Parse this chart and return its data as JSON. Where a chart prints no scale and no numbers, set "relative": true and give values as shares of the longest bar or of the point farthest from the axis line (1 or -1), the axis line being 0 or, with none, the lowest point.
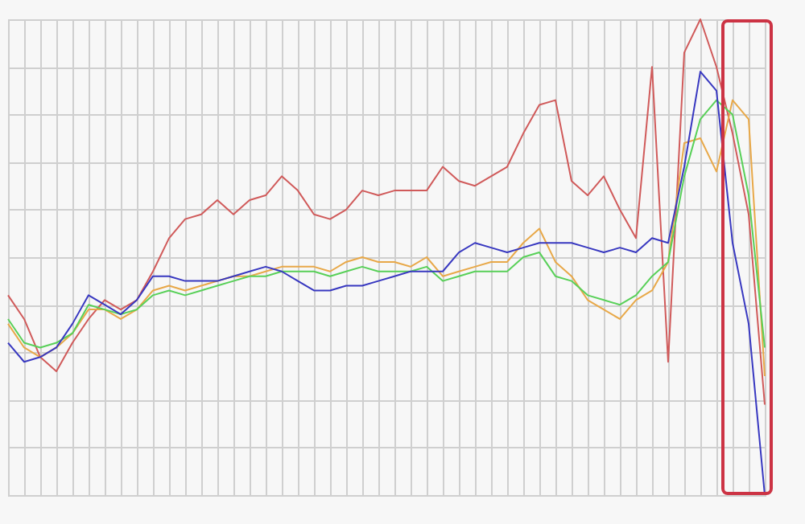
{
  "chart_data": {
    "type": "line",
    "relative": true,
    "grid": true,
    "categories": [
      null,
      null,
      null,
      null,
      null,
      null,
      null,
      null,
      null,
      null,
      null,
      null,
      null,
      null,
      null,
      null,
      null,
      null,
      null,
      null,
      null,
      null,
      null,
      null,
      null,
      null,
      null,
      null,
      null,
      null,
      null,
      null,
      null,
      null,
      null,
      null,
      null,
      null,
      null,
      null,
      null,
      null,
      null,
      null,
      null,
      null,
      null,
      null
    ],
    "series": [
      {
        "color": "#d05a5a",
        "values": [
          0.42,
          0.37,
          0.29,
          0.26,
          0.32,
          0.37,
          0.41,
          0.39,
          0.41,
          0.47,
          0.54,
          0.58,
          0.59,
          0.62,
          0.59,
          0.62,
          0.63,
          0.67,
          0.64,
          0.59,
          0.58,
          0.6,
          0.64,
          0.63,
          0.64,
          0.64,
          0.64,
          0.69,
          0.66,
          0.65,
          0.67,
          0.69,
          0.76,
          0.82,
          0.83,
          0.66,
          0.63,
          0.67,
          0.6,
          0.54,
          0.9,
          0.28,
          0.93,
          1,
          0.9,
          0.76,
          0.59,
          0.19
        ]
      },
      {
        "color": "#e8a848",
        "values": [
          0.36,
          0.31,
          0.29,
          0.31,
          0.34,
          0.39,
          0.39,
          0.37,
          0.39,
          0.43,
          0.44,
          0.43,
          0.44,
          0.45,
          0.46,
          0.46,
          0.47,
          0.48,
          0.48,
          0.48,
          0.47,
          0.49,
          0.5,
          0.49,
          0.49,
          0.48,
          0.5,
          0.46,
          0.47,
          0.48,
          0.49,
          0.49,
          0.53,
          0.56,
          0.49,
          0.46,
          0.41,
          0.39,
          0.37,
          0.41,
          0.43,
          0.49,
          0.74,
          0.75,
          0.68,
          0.83,
          0.79,
          0.25
        ]
      },
      {
        "color": "#58d058",
        "values": [
          0.37,
          0.32,
          0.31,
          0.32,
          0.34,
          0.4,
          0.39,
          0.38,
          0.39,
          0.42,
          0.43,
          0.42,
          0.43,
          0.44,
          0.45,
          0.46,
          0.46,
          0.47,
          0.47,
          0.47,
          0.46,
          0.47,
          0.48,
          0.47,
          0.47,
          0.47,
          0.48,
          0.45,
          0.46,
          0.47,
          0.47,
          0.47,
          0.5,
          0.51,
          0.46,
          0.45,
          0.42,
          0.41,
          0.4,
          0.42,
          0.46,
          0.49,
          0.67,
          0.79,
          0.83,
          0.8,
          0.63,
          0.31
        ]
      },
      {
        "color": "#3838c0",
        "values": [
          0.32,
          0.28,
          0.29,
          0.31,
          0.36,
          0.42,
          0.4,
          0.38,
          0.41,
          0.46,
          0.46,
          0.45,
          0.45,
          0.45,
          0.46,
          0.47,
          0.48,
          0.47,
          0.45,
          0.43,
          0.43,
          0.44,
          0.44,
          0.45,
          0.46,
          0.47,
          0.47,
          0.47,
          0.51,
          0.53,
          0.52,
          0.51,
          0.52,
          0.53,
          0.53,
          0.53,
          0.52,
          0.51,
          0.52,
          0.51,
          0.54,
          0.53,
          0.69,
          0.89,
          0.85,
          0.53,
          0.36,
          0
        ]
      }
    ]
  }
}
